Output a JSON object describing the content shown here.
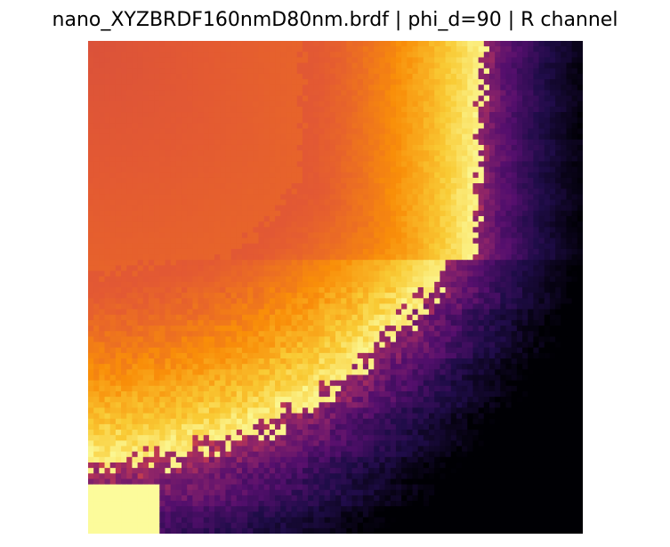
{
  "chart_data": {
    "type": "heatmap",
    "title": "nano_XYZBRDF160nmD80nm.brdf | phi_d=90 | R channel",
    "xlabel": "",
    "ylabel": "",
    "axes_visible": false,
    "grid": false,
    "colormap": "inferno",
    "colormap_stops": [
      "#000004",
      "#1f0c48",
      "#550f6d",
      "#88226a",
      "#ba3655",
      "#e35933",
      "#f98e09",
      "#f9cb35",
      "#fcffa4"
    ],
    "grid_shape": {
      "rows": 90,
      "cols": 90
    },
    "value_range": [
      0,
      1
    ],
    "regions": [
      {
        "region": "upper-left bright lobe",
        "approx_value": 0.62
      },
      {
        "region": "lobe boundary",
        "approx_value": 0.97
      },
      {
        "region": "right and lower-right dark region",
        "approx_value": 0.05
      },
      {
        "region": "bottom-right corner",
        "approx_value": 0.0
      }
    ]
  }
}
